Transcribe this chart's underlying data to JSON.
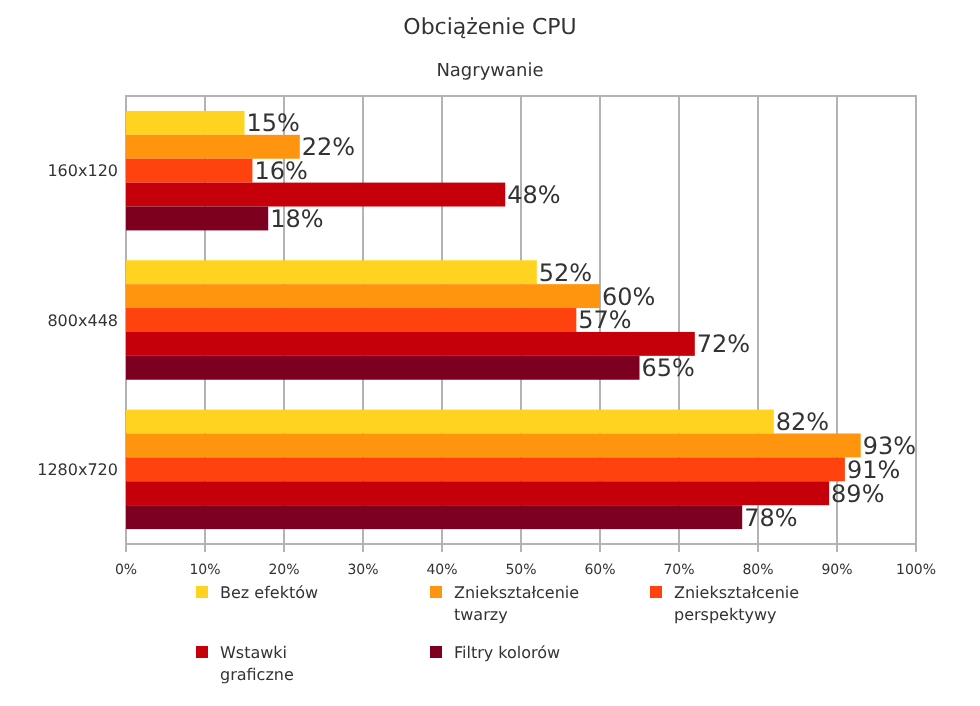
{
  "chart_data": {
    "type": "bar",
    "orientation": "horizontal",
    "title": "Obciążenie CPU",
    "subtitle": "Nagrywanie",
    "categories": [
      "160x120",
      "800x448",
      "1280x720"
    ],
    "series": [
      {
        "name": "Bez efektów",
        "color": "#ffd320",
        "values": [
          15,
          52,
          82
        ],
        "value_labels": [
          "15%",
          "52%",
          "82%"
        ]
      },
      {
        "name": "Zniekształcenie twarzy",
        "color": "#ff950e",
        "values": [
          22,
          60,
          93
        ],
        "value_labels": [
          "22%",
          "60%",
          "93%"
        ]
      },
      {
        "name": "Zniekształcenie perspektywy",
        "color": "#ff420e",
        "values": [
          16,
          57,
          91
        ],
        "value_labels": [
          "16%",
          "57%",
          "91%"
        ]
      },
      {
        "name": "Wstawki graficzne",
        "color": "#c5000b",
        "values": [
          48,
          72,
          89
        ],
        "value_labels": [
          "48%",
          "72%",
          "89%"
        ]
      },
      {
        "name": "Filtry kolorów",
        "color": "#7e0021",
        "values": [
          18,
          65,
          78
        ],
        "value_labels": [
          "18%",
          "65%",
          "78%"
        ]
      }
    ],
    "xlim": [
      0,
      100
    ],
    "xticks": [
      {
        "value": 0,
        "label": "0%"
      },
      {
        "value": 10,
        "label": "10%"
      },
      {
        "value": 20,
        "label": "20%"
      },
      {
        "value": 30,
        "label": "30%"
      },
      {
        "value": 40,
        "label": "40%"
      },
      {
        "value": 50,
        "label": "50%"
      },
      {
        "value": 60,
        "label": "60%"
      },
      {
        "value": 70,
        "label": "70%"
      },
      {
        "value": 80,
        "label": "80%"
      },
      {
        "value": 90,
        "label": "90%"
      },
      {
        "value": 100,
        "label": "100%"
      }
    ],
    "grid": "x",
    "legend": "bottom"
  }
}
